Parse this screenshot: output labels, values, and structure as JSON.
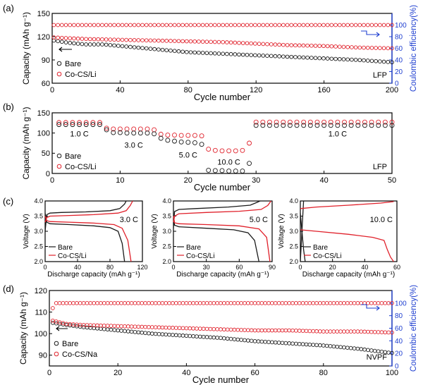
{
  "colors": {
    "bare": "#1a1a1a",
    "coated": "#e0202a",
    "ce_axis": "#1f3fd0",
    "axis": "#000000"
  },
  "panel_labels": [
    "(a)",
    "(b)",
    "(c)",
    "(d)"
  ],
  "chart_data": [
    {
      "id": "a",
      "type": "scatter",
      "xlabel": "Cycle number",
      "ylabel": "Capacity (mAh g⁻¹)",
      "y2label": "Coulombic efficiency(%)",
      "xlim": [
        0,
        200
      ],
      "ylim": [
        60,
        150
      ],
      "y2lim": [
        0,
        120
      ],
      "xticks": [
        0,
        40,
        80,
        120,
        160,
        200
      ],
      "yticks": [
        60,
        90,
        120,
        150
      ],
      "y2ticks": [
        0,
        20,
        40,
        60,
        80,
        100
      ],
      "tag": "LFP",
      "legend": [
        "Bare",
        "Co-CS/Li"
      ],
      "series": [
        {
          "name": "Bare",
          "axis": "left",
          "x": [
            1,
            10,
            20,
            30,
            40,
            60,
            80,
            100,
            120,
            140,
            160,
            180,
            200
          ],
          "y": [
            115,
            112,
            110,
            110,
            108,
            104,
            100,
            98,
            96,
            94,
            92,
            90,
            87
          ]
        },
        {
          "name": "Co-CS/Li",
          "axis": "left",
          "x": [
            1,
            10,
            20,
            40,
            60,
            80,
            100,
            120,
            140,
            160,
            180,
            200
          ],
          "y": [
            119,
            118,
            117,
            116,
            115,
            114,
            113,
            111,
            109,
            108,
            106,
            105
          ]
        },
        {
          "name": "Co-CS/Li CE",
          "axis": "right",
          "x": [
            1,
            200
          ],
          "y": [
            100,
            100
          ]
        }
      ]
    },
    {
      "id": "b",
      "type": "scatter",
      "xlabel": "Cycle number",
      "ylabel": "Capacity (mAh g⁻¹)",
      "xlim": [
        0,
        50
      ],
      "ylim": [
        0,
        150
      ],
      "xticks": [
        0,
        10,
        20,
        30,
        40,
        50
      ],
      "yticks": [
        0,
        50,
        100,
        150
      ],
      "tag": "LFP",
      "legend": [
        "Bare",
        "Co-CS/Li"
      ],
      "rate_labels": [
        "1.0 C",
        "3.0 C",
        "5.0 C",
        "10.0 C",
        "1.0 C"
      ],
      "series": [
        {
          "name": "Bare",
          "x": [
            1,
            2,
            3,
            4,
            5,
            6,
            7,
            8,
            9,
            10,
            11,
            12,
            13,
            14,
            15,
            16,
            17,
            18,
            19,
            20,
            21,
            22,
            23,
            24,
            25,
            26,
            27,
            28,
            29,
            30,
            31,
            32,
            33,
            34,
            35,
            36,
            37,
            38,
            39,
            40,
            41,
            42,
            43,
            44,
            45,
            46,
            47,
            48,
            49,
            50
          ],
          "y": [
            121,
            121,
            121,
            121,
            121,
            121,
            121,
            108,
            101,
            101,
            100,
            100,
            100,
            100,
            98,
            87,
            82,
            80,
            78,
            77,
            76,
            72,
            8,
            7,
            7,
            6,
            6,
            6,
            25,
            119,
            119,
            119,
            119,
            119,
            119,
            119,
            119,
            119,
            119,
            119,
            119,
            119,
            119,
            119,
            119,
            119,
            119,
            119,
            119,
            119
          ]
        },
        {
          "name": "Co-CS/Li",
          "x": [
            1,
            2,
            3,
            4,
            5,
            6,
            7,
            8,
            9,
            10,
            11,
            12,
            13,
            14,
            15,
            16,
            17,
            18,
            19,
            20,
            21,
            22,
            23,
            24,
            25,
            26,
            27,
            28,
            29,
            30,
            31,
            32,
            33,
            34,
            35,
            36,
            37,
            38,
            39,
            40,
            41,
            42,
            43,
            44,
            45,
            46,
            47,
            48,
            49,
            50
          ],
          "y": [
            126,
            126,
            126,
            126,
            126,
            126,
            126,
            112,
            110,
            110,
            110,
            110,
            110,
            110,
            108,
            97,
            95,
            95,
            94,
            94,
            94,
            93,
            60,
            57,
            56,
            56,
            56,
            57,
            75,
            127,
            127,
            127,
            127,
            127,
            127,
            127,
            127,
            127,
            127,
            127,
            127,
            127,
            127,
            127,
            127,
            127,
            127,
            127,
            127,
            127
          ]
        }
      ]
    },
    {
      "id": "c1",
      "type": "line",
      "xlabel": "Discharge capacity (mAh g⁻¹)",
      "ylabel": "Voltage (V)",
      "xlim": [
        0,
        120
      ],
      "ylim": [
        2.0,
        4.0
      ],
      "xticks": [
        0,
        40,
        80,
        120
      ],
      "yticks": [
        2.0,
        2.5,
        3.0,
        3.5,
        4.0
      ],
      "rate": "3.0 C",
      "legend": [
        "Bare",
        "Co-CS/Li"
      ],
      "series": [
        {
          "name": "Bare charge",
          "x": [
            0,
            2,
            6,
            20,
            50,
            80,
            92,
            98,
            100
          ],
          "y": [
            3.0,
            3.55,
            3.6,
            3.62,
            3.64,
            3.68,
            3.75,
            3.9,
            4.0
          ]
        },
        {
          "name": "Bare discharge",
          "x": [
            0,
            2,
            6,
            30,
            60,
            80,
            90,
            95,
            98
          ],
          "y": [
            3.6,
            3.3,
            3.25,
            3.22,
            3.18,
            3.12,
            3.0,
            2.6,
            2.0
          ]
        },
        {
          "name": "Co-CS/Li charge",
          "x": [
            0,
            2,
            6,
            30,
            60,
            90,
            100,
            105,
            108
          ],
          "y": [
            3.3,
            3.45,
            3.5,
            3.52,
            3.55,
            3.6,
            3.68,
            3.85,
            4.0
          ]
        },
        {
          "name": "Co-CS/Li discharge",
          "x": [
            0,
            2,
            6,
            30,
            60,
            85,
            95,
            102,
            106
          ],
          "y": [
            3.5,
            3.35,
            3.32,
            3.3,
            3.27,
            3.22,
            3.1,
            2.7,
            2.0
          ]
        }
      ]
    },
    {
      "id": "c2",
      "type": "line",
      "xlabel": "Discharge capacity (mAh g⁻¹)",
      "ylabel": "Voltage (V)",
      "xlim": [
        0,
        90
      ],
      "ylim": [
        2.0,
        4.0
      ],
      "xticks": [
        0,
        30,
        60,
        90
      ],
      "yticks": [
        2.0,
        2.5,
        3.0,
        3.5,
        4.0
      ],
      "rate": "5.0 C",
      "legend": [
        "Bare",
        "Co-CS/Li"
      ],
      "series": [
        {
          "name": "Bare charge",
          "x": [
            0,
            1,
            5,
            20,
            50,
            70,
            76,
            79
          ],
          "y": [
            3.1,
            3.65,
            3.72,
            3.75,
            3.8,
            3.86,
            3.95,
            4.0
          ]
        },
        {
          "name": "Bare discharge",
          "x": [
            0,
            1,
            5,
            30,
            55,
            68,
            74,
            78
          ],
          "y": [
            3.6,
            3.2,
            3.15,
            3.1,
            3.05,
            2.95,
            2.7,
            2.0
          ]
        },
        {
          "name": "Co-CS/Li charge",
          "x": [
            0,
            1,
            5,
            30,
            60,
            80,
            86,
            89
          ],
          "y": [
            3.3,
            3.5,
            3.58,
            3.62,
            3.66,
            3.72,
            3.85,
            4.0
          ]
        },
        {
          "name": "Co-CS/Li discharge",
          "x": [
            0,
            1,
            5,
            30,
            60,
            78,
            85,
            88
          ],
          "y": [
            3.5,
            3.28,
            3.25,
            3.22,
            3.18,
            3.08,
            2.8,
            2.0
          ]
        }
      ]
    },
    {
      "id": "c3",
      "type": "line",
      "xlabel": "Discharge capacity (mAh g⁻¹)",
      "ylabel": "Voltage (V)",
      "xlim": [
        0,
        60
      ],
      "ylim": [
        2.0,
        4.0
      ],
      "xticks": [
        0,
        20,
        40,
        60
      ],
      "yticks": [
        2.0,
        2.5,
        3.0,
        3.5,
        4.0
      ],
      "rate": "10.0 C",
      "legend": [
        "Bare",
        "Co-CS/Li"
      ],
      "series": [
        {
          "name": "Bare charge",
          "x": [
            0,
            1,
            2
          ],
          "y": [
            2.0,
            3.0,
            4.0
          ]
        },
        {
          "name": "Bare discharge",
          "x": [
            0,
            1,
            2,
            3
          ],
          "y": [
            3.6,
            3.0,
            2.4,
            2.0
          ]
        },
        {
          "name": "Co-CS/Li charge",
          "x": [
            0,
            10,
            30,
            50,
            58
          ],
          "y": [
            3.75,
            3.8,
            3.86,
            3.93,
            3.98
          ]
        },
        {
          "name": "Co-CS/Li discharge",
          "x": [
            0,
            10,
            30,
            45,
            52,
            54,
            56,
            58
          ],
          "y": [
            3.05,
            3.0,
            2.9,
            2.8,
            2.7,
            2.4,
            2.15,
            2.0
          ]
        }
      ]
    },
    {
      "id": "d",
      "type": "scatter",
      "xlabel": "Cycle number",
      "ylabel": "Capacity (mAh g⁻¹)",
      "y2label": "Coulombic efficiency(%)",
      "xlim": [
        0,
        100
      ],
      "ylim": [
        85,
        120
      ],
      "y2lim": [
        0,
        120
      ],
      "xticks": [
        0,
        20,
        40,
        60,
        80,
        100
      ],
      "yticks": [
        90,
        100,
        110,
        120
      ],
      "y2ticks": [
        0,
        20,
        40,
        60,
        80,
        100
      ],
      "tag": "NVPF",
      "legend": [
        "Bare",
        "Co-CS/Na"
      ],
      "series": [
        {
          "name": "Bare",
          "axis": "left",
          "x": [
            1,
            5,
            10,
            20,
            30,
            40,
            50,
            60,
            70,
            80,
            90,
            100
          ],
          "y": [
            105,
            104,
            103,
            101.5,
            100,
            99,
            98,
            96.5,
            95.5,
            94.5,
            93,
            91
          ]
        },
        {
          "name": "Co-CS/Na",
          "axis": "left",
          "x": [
            1,
            5,
            10,
            20,
            30,
            40,
            50,
            60,
            70,
            80,
            90,
            100
          ],
          "y": [
            106,
            104.5,
            104,
            103.5,
            103,
            102.5,
            102,
            101.5,
            101.5,
            101,
            101,
            100.5
          ]
        },
        {
          "name": "Co-CS/Na CE",
          "axis": "right",
          "x": [
            1,
            2,
            100
          ],
          "y": [
            92,
            100,
            100
          ]
        }
      ]
    }
  ]
}
